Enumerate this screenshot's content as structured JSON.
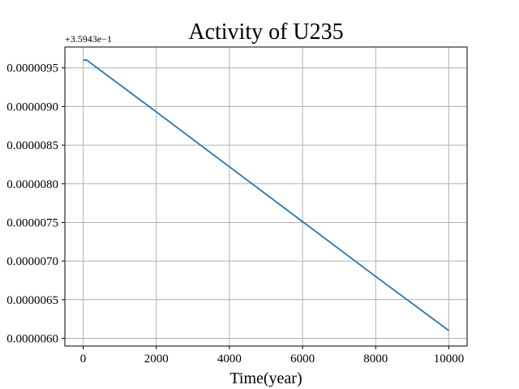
{
  "chart_data": {
    "type": "line",
    "title": "Activity of U235",
    "xlabel": "Time(year)",
    "ylabel": "",
    "offset_text": "+3.5943e−1",
    "xlim": [
      -500,
      10500
    ],
    "ylim": [
      5.9e-06,
      9.77e-06
    ],
    "grid": true,
    "legend": "none",
    "x_ticks": [
      0,
      2000,
      4000,
      6000,
      8000,
      10000
    ],
    "x_tick_labels": [
      "0",
      "2000",
      "4000",
      "6000",
      "8000",
      "10000"
    ],
    "y_ticks": [
      6e-06,
      6.5e-06,
      7e-06,
      7.5e-06,
      8e-06,
      8.5e-06,
      9e-06,
      9.5e-06
    ],
    "y_tick_labels": [
      "0.0000060",
      "0.0000065",
      "0.0000070",
      "0.0000075",
      "0.0000080",
      "0.0000085",
      "0.0000090",
      "0.0000095"
    ],
    "series": [
      {
        "color": "#1f77b4",
        "x": [
          0,
          100,
          2000,
          4000,
          6000,
          8000,
          10000
        ],
        "y": [
          9.6e-06,
          9.6e-06,
          8.93e-06,
          8.22e-06,
          7.51e-06,
          6.8e-06,
          6.1e-06
        ]
      }
    ]
  },
  "colors": {
    "axis": "#000000",
    "grid": "#b0b0b0"
  }
}
